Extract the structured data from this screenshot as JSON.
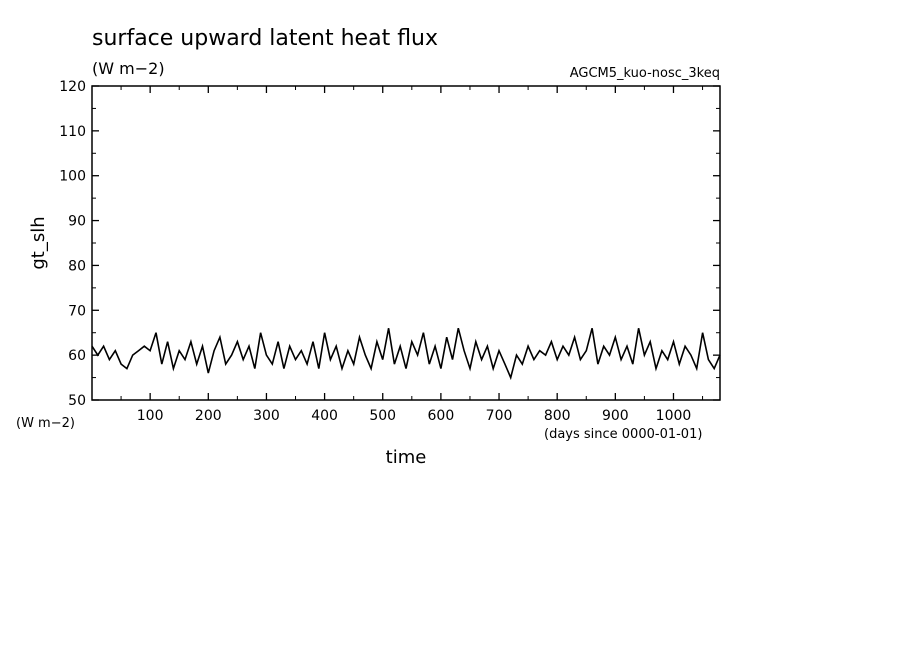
{
  "chart_data": {
    "type": "line",
    "title": "surface upward latent heat flux",
    "units_label": "(W m−2)",
    "run_label": "AGCM5_kuo-nosc_3keq",
    "ylabel": "gt_slh",
    "y_unit_label": "(W m−2)",
    "xlabel": "time",
    "x_unit_label": "(days since 0000-01-01)",
    "xlim": [
      0,
      1080
    ],
    "ylim": [
      50,
      120
    ],
    "x_ticks": [
      100,
      200,
      300,
      400,
      500,
      600,
      700,
      800,
      900,
      1000
    ],
    "y_ticks": [
      50,
      60,
      70,
      80,
      90,
      100,
      110,
      120
    ],
    "grid": false,
    "series": [
      {
        "x": [
          0,
          10,
          20,
          30,
          40,
          50,
          60,
          70,
          80,
          90,
          100,
          110,
          120,
          130,
          140,
          150,
          160,
          170,
          180,
          190,
          200,
          210,
          220,
          230,
          240,
          250,
          260,
          270,
          280,
          290,
          300,
          310,
          320,
          330,
          340,
          350,
          360,
          370,
          380,
          390,
          400,
          410,
          420,
          430,
          440,
          450,
          460,
          470,
          480,
          490,
          500,
          510,
          520,
          530,
          540,
          550,
          560,
          570,
          580,
          590,
          600,
          610,
          620,
          630,
          640,
          650,
          660,
          670,
          680,
          690,
          700,
          710,
          720,
          730,
          740,
          750,
          760,
          770,
          780,
          790,
          800,
          810,
          820,
          830,
          840,
          850,
          860,
          870,
          880,
          890,
          900,
          910,
          920,
          930,
          940,
          950,
          960,
          970,
          980,
          990,
          1000,
          1010,
          1020,
          1030,
          1040,
          1050,
          1060,
          1070,
          1080
        ],
        "values": [
          62,
          60,
          62,
          59,
          61,
          58,
          57,
          60,
          61,
          62,
          61,
          65,
          58,
          63,
          57,
          61,
          59,
          63,
          58,
          62,
          56,
          61,
          64,
          58,
          60,
          63,
          59,
          62,
          57,
          65,
          60,
          58,
          63,
          57,
          62,
          59,
          61,
          58,
          63,
          57,
          65,
          59,
          62,
          57,
          61,
          58,
          64,
          60,
          57,
          63,
          59,
          66,
          58,
          62,
          57,
          63,
          60,
          65,
          58,
          62,
          57,
          64,
          59,
          66,
          61,
          57,
          63,
          59,
          62,
          57,
          61,
          58,
          55,
          60,
          58,
          62,
          59,
          61,
          60,
          63,
          59,
          62,
          60,
          64,
          59,
          61,
          66,
          58,
          62,
          60,
          64,
          59,
          62,
          58,
          66,
          60,
          63,
          57,
          61,
          59,
          63,
          58,
          62,
          60,
          57,
          65,
          59,
          57,
          60
        ]
      }
    ]
  }
}
